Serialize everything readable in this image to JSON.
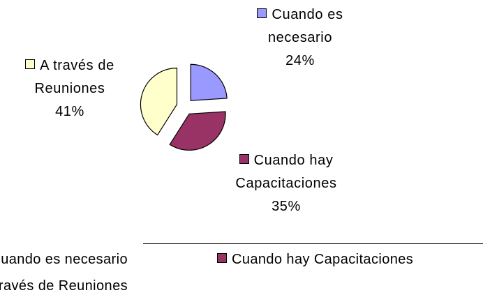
{
  "chart_data": {
    "type": "pie",
    "categories": [
      "Cuando es necesario",
      "Cuando hay Capacitaciones",
      "A través de Reuniones"
    ],
    "values": [
      24,
      35,
      41
    ],
    "value_labels": [
      "24%",
      "35%",
      "41%"
    ],
    "colors": [
      "#9999ff",
      "#993366",
      "#ffffcc"
    ],
    "exploded": true,
    "legend": "bottom"
  }
}
